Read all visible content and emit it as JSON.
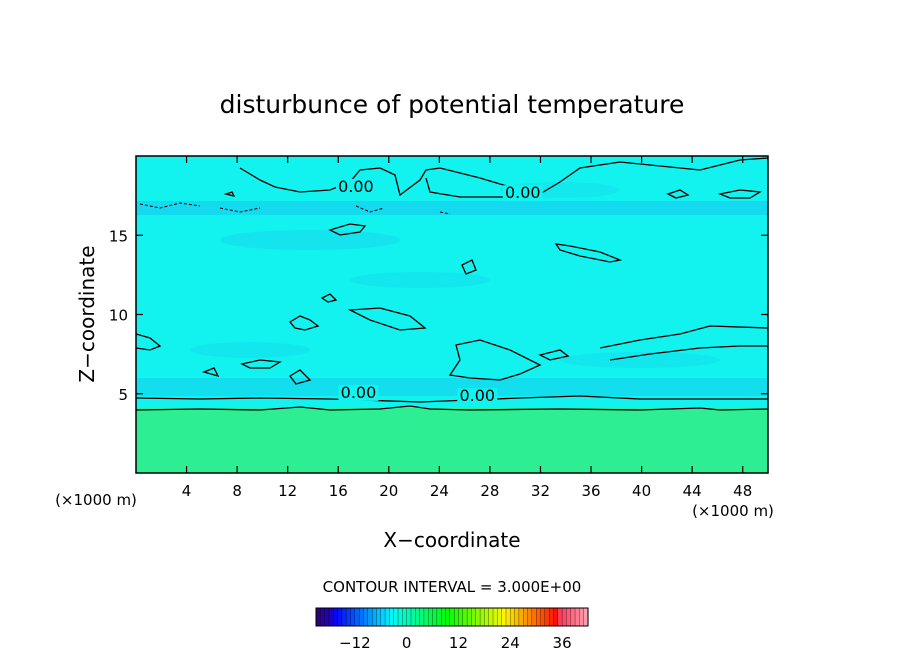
{
  "chart_data": {
    "type": "heatmap",
    "title": "disturbunce of potential temperature",
    "xlabel": "X−coordinate",
    "ylabel": "Z−coordinate",
    "x_unit": "(×1000 m)",
    "y_unit": "(×1000 m)",
    "xlim": [
      0,
      50
    ],
    "ylim": [
      0,
      20
    ],
    "x_ticks": [
      4,
      8,
      12,
      16,
      20,
      24,
      28,
      32,
      36,
      40,
      44,
      48
    ],
    "y_ticks": [
      5,
      10,
      15
    ],
    "contour_interval_label": "CONTOUR INTERVAL = 3.000E+00",
    "contour_labels": [
      {
        "text": "0.00",
        "x": 17.4,
        "z": 17.8
      },
      {
        "text": "0.00",
        "x": 30.6,
        "z": 17.4
      },
      {
        "text": "0.00",
        "x": 17.6,
        "z": 4.8
      },
      {
        "text": "0.00",
        "x": 27.0,
        "z": 4.6
      }
    ],
    "colorbar": {
      "ticks": [
        -12,
        0,
        12,
        24,
        36
      ],
      "min": -21,
      "max": 42
    },
    "colors": {
      "lower_layer": "#2eee94",
      "upper_field": "#12f2ee",
      "band": "#14d6ee",
      "contour": "#000000"
    }
  }
}
